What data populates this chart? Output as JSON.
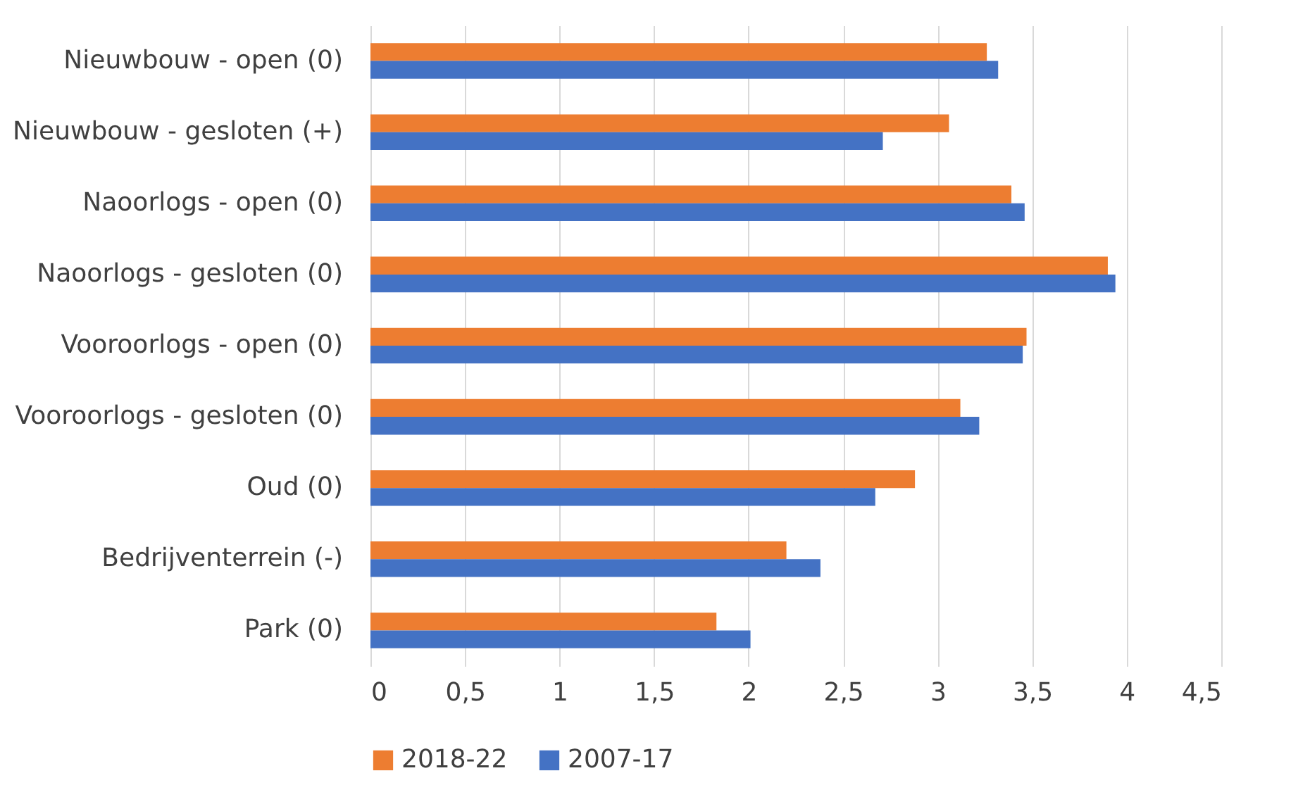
{
  "chart_data": {
    "type": "bar",
    "orientation": "horizontal",
    "categories": [
      "Nieuwbouw - open (0)",
      "Nieuwbouw - gesloten (+)",
      "Naoorlogs - open (0)",
      "Naoorlogs - gesloten (0)",
      "Vooroorlogs - open (0)",
      "Vooroorlogs - gesloten (0)",
      "Oud (0)",
      "Bedrijventerrein (-)",
      "Park (0)"
    ],
    "series": [
      {
        "name": "2018-22",
        "color": "#ed7d31",
        "values": [
          3.26,
          3.06,
          3.39,
          3.9,
          3.47,
          3.12,
          2.88,
          2.2,
          1.83
        ]
      },
      {
        "name": "2007-17",
        "color": "#4472c4",
        "values": [
          3.32,
          2.71,
          3.46,
          3.94,
          3.45,
          3.22,
          2.67,
          2.38,
          2.01
        ]
      }
    ],
    "xlim": [
      0,
      4.5
    ],
    "xticks": [
      0,
      {
        "value": 0.5,
        "label": "0,5"
      },
      1,
      {
        "value": 1.5,
        "label": "1,5"
      },
      2,
      {
        "value": 2.5,
        "label": "2,5"
      },
      3,
      {
        "value": 3.5,
        "label": "3,5"
      },
      4,
      {
        "value": 4.5,
        "label": "4,5"
      }
    ],
    "grid": "x",
    "legend": "bottom"
  }
}
